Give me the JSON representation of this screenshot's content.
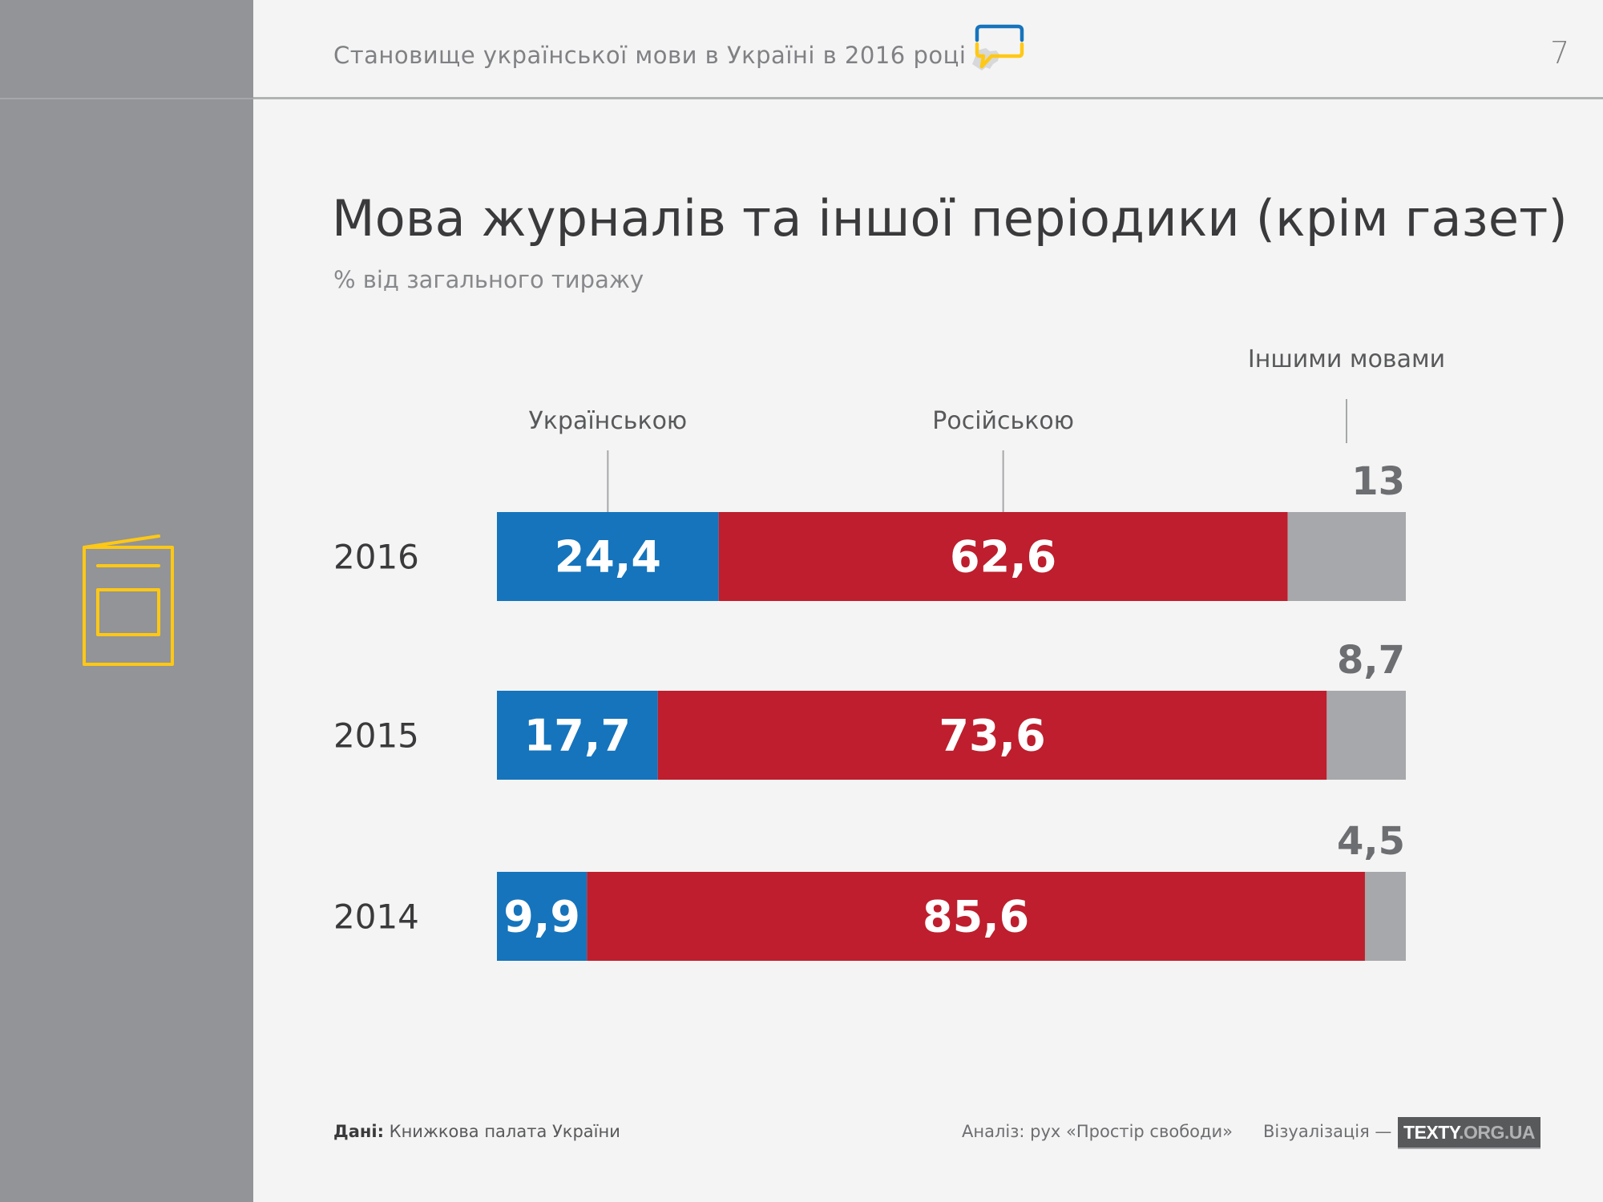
{
  "header": {
    "title": "Становище української мови в Україні в 2016 році",
    "page_number": "7",
    "logo_icon": "speech-bubble-ukraine-map-icon"
  },
  "sidebar": {
    "icon": "magazine-icon",
    "icon_color": "#ffc814"
  },
  "colors": {
    "ukrainian": "#1574bc",
    "russian": "#be1e2d",
    "other": "#a7a8ab",
    "other_label": "#6d6e71",
    "leader": "#a6a7aa"
  },
  "chart_data": {
    "type": "bar",
    "orientation": "horizontal",
    "stacked": true,
    "title": "Мова журналів та іншої періодики (крім газет)",
    "subtitle": "% від загального тиражу",
    "xlabel": "",
    "ylabel": "",
    "xlim": [
      0,
      100
    ],
    "grid": false,
    "legend_placement": "top (leader-line labels above first bar)",
    "categories": [
      "2016",
      "2015",
      "2014"
    ],
    "series": [
      {
        "name": "Українською",
        "values": [
          24.4,
          17.7,
          9.9
        ],
        "labels": [
          "24,4",
          "17,7",
          "9,9"
        ]
      },
      {
        "name": "Російською",
        "values": [
          62.6,
          73.6,
          85.6
        ],
        "labels": [
          "62,6",
          "73,6",
          "85,6"
        ]
      },
      {
        "name": "Іншими мовами",
        "values": [
          13,
          8.7,
          4.5
        ],
        "labels": [
          "13",
          "8,7",
          "4,5"
        ]
      }
    ]
  },
  "footer": {
    "source_label": "Дані:",
    "source_value": " Книжкова палата України",
    "analysis": "Аналіз: рух «Простір свободи»",
    "visualization": "Візуалізація —",
    "brand_main": "TEXTY",
    "brand_domain": ".ORG.UA"
  }
}
